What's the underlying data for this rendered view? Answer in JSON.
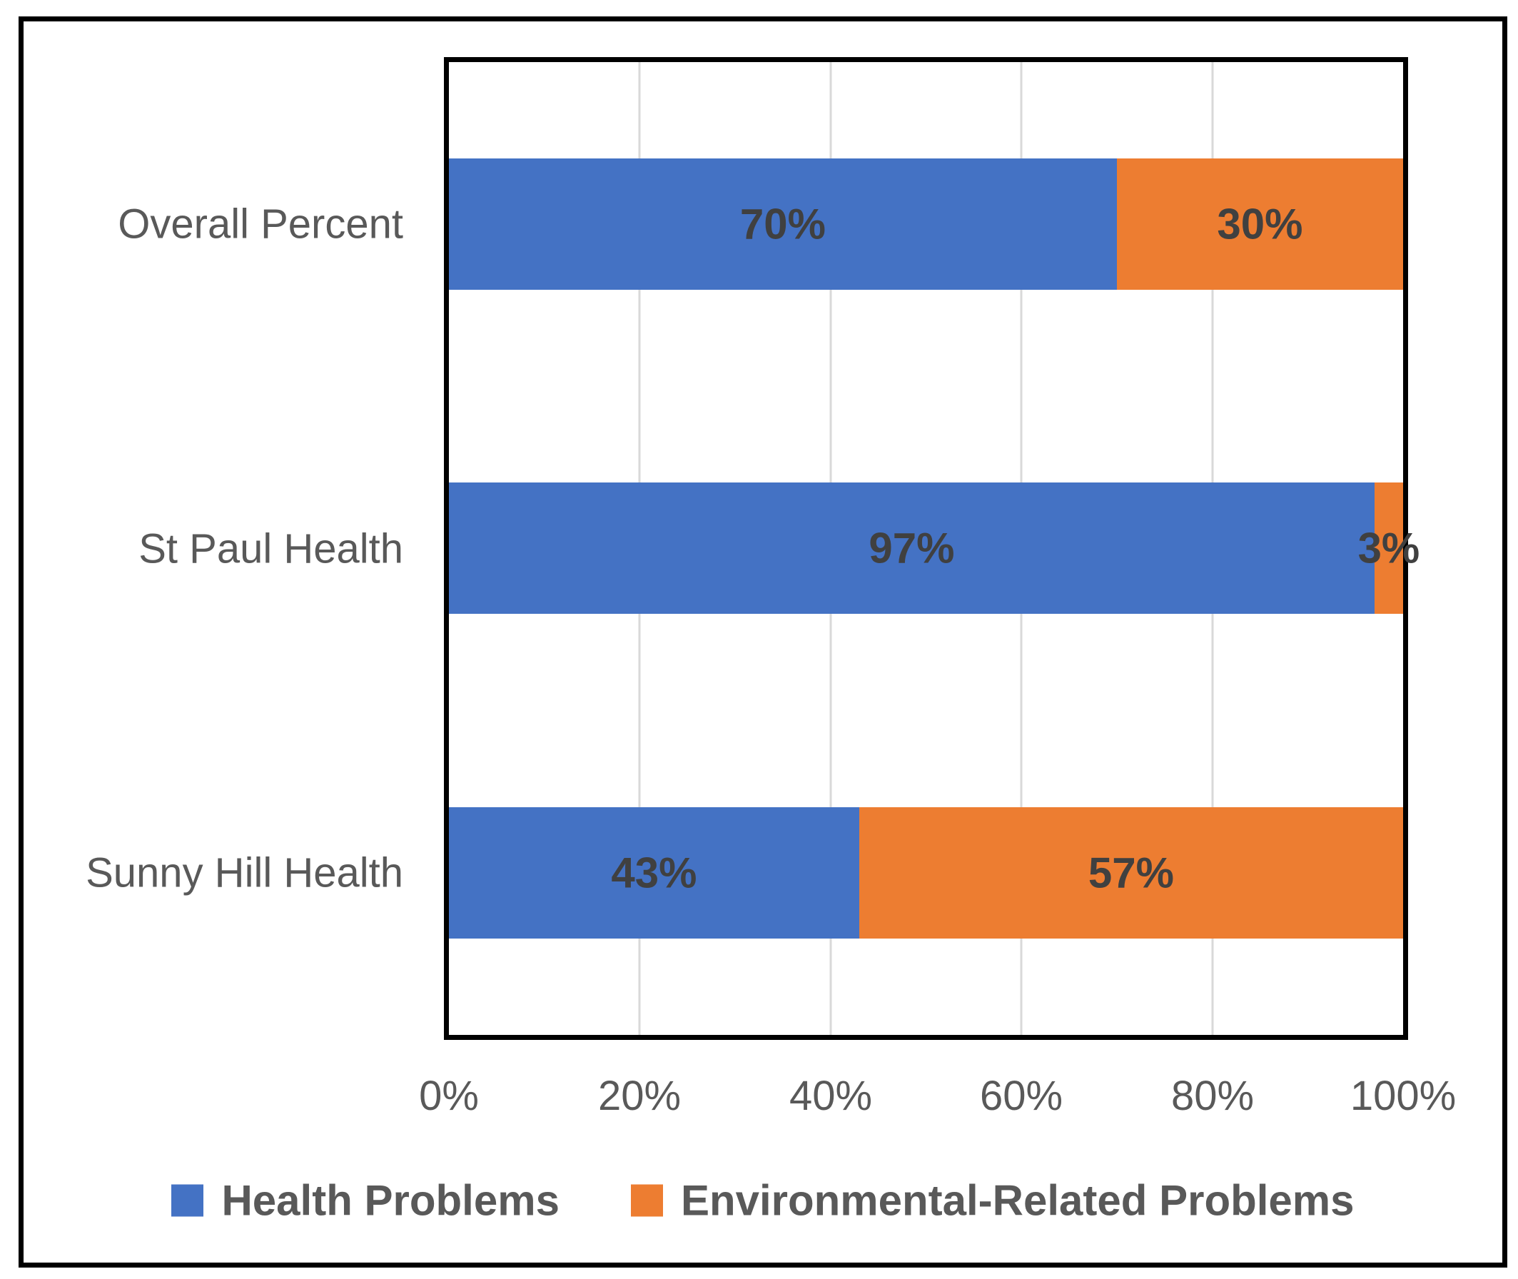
{
  "chart_data": {
    "type": "bar",
    "orientation": "horizontal",
    "stacked": true,
    "percent_stacked": true,
    "title": "",
    "categories": [
      "Overall Percent",
      "St Paul Health",
      "Sunny Hill Health"
    ],
    "series": [
      {
        "name": "Health Problems",
        "color": "#4472C4",
        "values": [
          70,
          97,
          43
        ],
        "data_labels": [
          "70%",
          "97%",
          "43%"
        ]
      },
      {
        "name": "Environmental-Related Problems",
        "color": "#ED7D31",
        "values": [
          30,
          3,
          57
        ],
        "data_labels": [
          "30%",
          "3%",
          "57%"
        ]
      }
    ],
    "x_axis": {
      "range": [
        0,
        100
      ],
      "tick_values": [
        0,
        20,
        40,
        60,
        80,
        100
      ],
      "tick_labels": [
        "0%",
        "20%",
        "40%",
        "60%",
        "80%",
        "100%"
      ]
    },
    "grid": true,
    "legend": {
      "position": "bottom"
    },
    "styles": {
      "data_label_color": "#404040",
      "axis_text_color": "#595959",
      "gridline_color": "#D9D9D9",
      "border_color": "#000000"
    }
  }
}
